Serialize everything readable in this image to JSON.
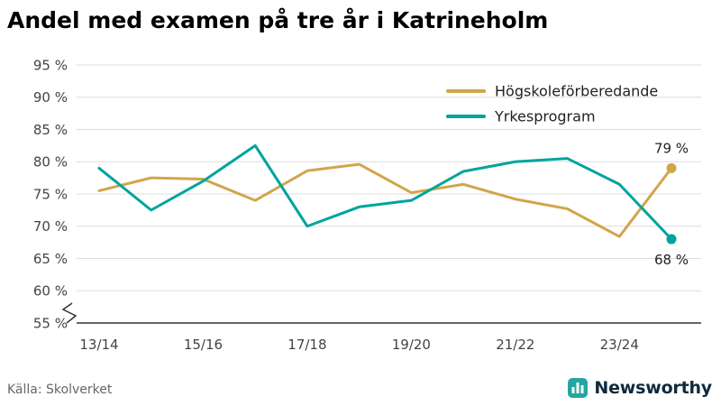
{
  "title": "Andel med examen på tre år i Katrineholm",
  "source": "Källa: Skolverket",
  "brand": {
    "name": "Newsworthy",
    "icon_color": "#24a79f",
    "text_color": "#0e2a3a"
  },
  "chart_data": {
    "type": "line",
    "x": [
      "13/14",
      "14/15",
      "15/16",
      "16/17",
      "17/18",
      "18/19",
      "19/20",
      "20/21",
      "21/22",
      "22/23",
      "23/24",
      "24/25"
    ],
    "x_tick_labels": [
      "13/14",
      "15/16",
      "17/18",
      "19/20",
      "21/22",
      "23/24"
    ],
    "series": [
      {
        "name": "Högskoleförberedande",
        "color": "#d2a54b",
        "values": [
          75.5,
          77.5,
          77.3,
          74.0,
          78.6,
          79.6,
          75.2,
          76.5,
          74.2,
          72.7,
          68.4,
          79.0
        ],
        "end_label": "79 %",
        "end_label_position": "above"
      },
      {
        "name": "Yrkesprogram",
        "color": "#00a49d",
        "values": [
          79.0,
          72.5,
          77.0,
          82.5,
          70.0,
          73.0,
          74.0,
          78.5,
          80.0,
          80.5,
          76.5,
          68.0
        ],
        "end_label": "68 %",
        "end_label_position": "below"
      }
    ],
    "ylim": [
      55,
      95
    ],
    "yticks": [
      55,
      60,
      65,
      70,
      75,
      80,
      85,
      90,
      95
    ],
    "y_tick_suffix": " %",
    "axis_break": true,
    "grid": true,
    "legend_position": "top-right"
  }
}
